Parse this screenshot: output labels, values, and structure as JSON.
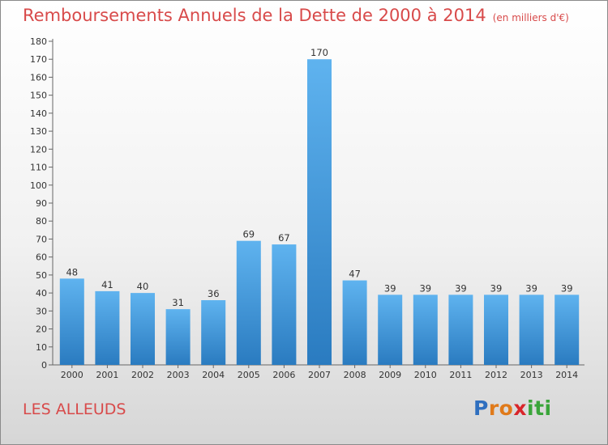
{
  "title": "Remboursements Annuels de la Dette de 2000 à 2014",
  "unit": "(en milliers d'€)",
  "commune": "LES ALLEUDS",
  "logo": {
    "letters": [
      "P",
      "r",
      "o",
      "x",
      "i",
      "t",
      "i"
    ],
    "colors": [
      "#2f6fbf",
      "#e07a1a",
      "#e07a1a",
      "#d8252a",
      "#3aa53a",
      "#3aa53a",
      "#3aa53a"
    ]
  },
  "chart_data": {
    "type": "bar",
    "categories": [
      "2000",
      "2001",
      "2002",
      "2003",
      "2004",
      "2005",
      "2006",
      "2007",
      "2008",
      "2009",
      "2010",
      "2011",
      "2012",
      "2013",
      "2014"
    ],
    "values": [
      48,
      41,
      40,
      31,
      36,
      69,
      67,
      170,
      47,
      39,
      39,
      39,
      39,
      39,
      39
    ],
    "ylim": [
      0,
      180
    ],
    "ytick_step": 10,
    "grid": false,
    "legend": "none",
    "bar_color": "#3a8fd6"
  }
}
